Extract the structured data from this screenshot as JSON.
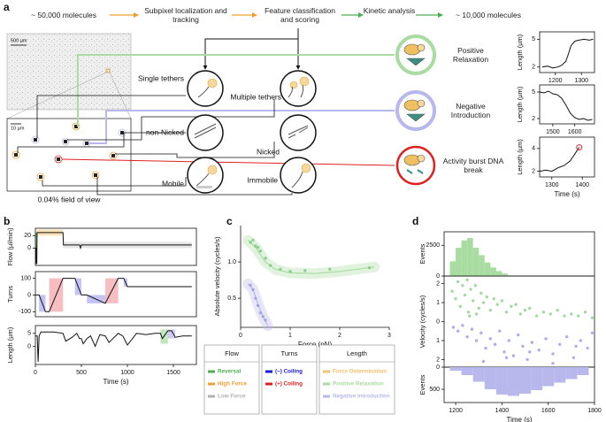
{
  "panel_labels": [
    "a",
    "b",
    "c",
    "d"
  ],
  "pipeline": [
    "~ 50,000 molecules",
    "Subpixel localization and tracking",
    "Feature classification and scoring",
    "Kinetic analysis",
    "~ 10,000 molecules"
  ],
  "image": {
    "scale_bar": "500 µm",
    "zoom_scale_bar": "10 µm",
    "caption": "0.04% field of view"
  },
  "classes": [
    "Single tethers",
    "Multiple tethers",
    "non-Nicked",
    "Nicked",
    "Mobile",
    "Immobile"
  ],
  "outcomes": [
    "Positive Relaxation",
    "Negative Introduction",
    "Activity burst DNA break"
  ],
  "legend": {
    "groups": [
      {
        "title": "Flow",
        "items": [
          {
            "name": "Reversal",
            "color": "#4caf50"
          },
          {
            "name": "High Force",
            "color": "#f0a030"
          },
          {
            "name": "Low Force",
            "color": "#b0b0b0"
          }
        ]
      },
      {
        "title": "Turns",
        "items": [
          {
            "name": "(−) Coiling",
            "color": "#1a1adc"
          },
          {
            "name": "(+) Coiling",
            "color": "#e02020"
          }
        ]
      },
      {
        "title": "Length",
        "items": [
          {
            "name": "Force Determination",
            "color": "#f5c070"
          },
          {
            "name": "Positive Relaxation",
            "color": "#a8dca0"
          },
          {
            "name": "Negative Introduction",
            "color": "#b8b8ec"
          }
        ]
      }
    ]
  },
  "chart_data": [
    {
      "type": "line",
      "frame": "box",
      "color": "#111111",
      "ylabel": "Length (µm)",
      "x": [
        1150,
        1170,
        1190,
        1210,
        1225,
        1240,
        1250,
        1260,
        1275,
        1290,
        1310,
        1330,
        1345
      ],
      "values": [
        2.0,
        2.1,
        1.9,
        2.0,
        2.2,
        2.6,
        3.4,
        4.3,
        4.8,
        4.9,
        5.0,
        4.9,
        5.0
      ],
      "xlim": [
        1140,
        1350
      ],
      "ylim": [
        1.4,
        5.8
      ],
      "xticks": [
        1200,
        1300
      ],
      "yticks": [
        2,
        5
      ]
    },
    {
      "type": "line",
      "frame": "box",
      "color": "#111111",
      "ylabel": "Length (µm)",
      "x": [
        1440,
        1460,
        1480,
        1500,
        1520,
        1540,
        1560,
        1580,
        1600,
        1620,
        1640,
        1660,
        1680
      ],
      "values": [
        5.0,
        4.9,
        5.1,
        4.8,
        4.7,
        4.3,
        3.5,
        2.6,
        2.1,
        1.9,
        2.0,
        1.8,
        1.9
      ],
      "xlim": [
        1440,
        1690
      ],
      "ylim": [
        1.4,
        5.8
      ],
      "xticks": [
        1500,
        1600
      ],
      "yticks": [
        2,
        5
      ]
    },
    {
      "type": "line",
      "frame": "box",
      "color": "#111111",
      "ylabel": "Length (µm)",
      "xlabel": "Time (s)",
      "end_marker_color": "#e02020",
      "x": [
        1260,
        1280,
        1300,
        1320,
        1340,
        1360,
        1370,
        1380,
        1390
      ],
      "values": [
        2.0,
        2.1,
        2.0,
        2.3,
        2.5,
        2.9,
        3.3,
        3.7,
        4.1
      ],
      "xlim": [
        1260,
        1440
      ],
      "ylim": [
        1.5,
        5.0
      ],
      "xticks": [
        1300,
        1400
      ],
      "yticks": [
        2,
        4
      ]
    },
    {
      "type": "line",
      "frame": "box",
      "color": "#111111",
      "ylabel": "Flow (µl/min)",
      "x": [
        0,
        8,
        10,
        15,
        18,
        300,
        305,
        480,
        490,
        500,
        510,
        1700
      ],
      "values": [
        0,
        0,
        -25,
        -25,
        25,
        25,
        5,
        5,
        0,
        5,
        5,
        5
      ],
      "xlim": [
        0,
        1750
      ],
      "ylim": [
        -28,
        32
      ],
      "yticks": [
        0,
        20
      ],
      "regions": [
        {
          "color": "#4caf50",
          "x": [
            0,
            18
          ],
          "y": [
            -25,
            25
          ]
        },
        {
          "color": "#fbd59a",
          "x": [
            18,
            300
          ],
          "y": [
            20,
            30
          ]
        },
        {
          "color": "#dcdcdc",
          "x": [
            300,
            1700
          ],
          "y": [
            0,
            10
          ]
        }
      ]
    },
    {
      "type": "line",
      "frame": "box",
      "color": "#111111",
      "ylabel": "Turns",
      "x": [
        0,
        40,
        110,
        150,
        300,
        430,
        500,
        560,
        760,
        900,
        960,
        1000,
        1700
      ],
      "values": [
        0,
        0,
        -100,
        -100,
        100,
        100,
        0,
        0,
        -50,
        100,
        100,
        50,
        50
      ],
      "xlim": [
        0,
        1750
      ],
      "ylim": [
        -130,
        140
      ],
      "yticks": [
        -100,
        0,
        100
      ],
      "regions": [
        {
          "color": "#a9a9f0",
          "x": [
            40,
            110
          ],
          "y": [
            -100,
            0
          ]
        },
        {
          "color": "#f4a3a8",
          "x": [
            150,
            300
          ],
          "y": [
            -100,
            100
          ]
        },
        {
          "color": "#a9a9f0",
          "x": [
            430,
            500
          ],
          "y": [
            0,
            100
          ]
        },
        {
          "color": "#a9a9f0",
          "x": [
            560,
            760
          ],
          "y": [
            -50,
            0
          ]
        },
        {
          "color": "#f4a3a8",
          "x": [
            760,
            900
          ],
          "y": [
            -50,
            100
          ]
        },
        {
          "color": "#a9a9f0",
          "x": [
            960,
            1000
          ],
          "y": [
            50,
            100
          ]
        }
      ]
    },
    {
      "type": "line",
      "frame": "box",
      "color": "#111111",
      "ylabel": "Length (µm)",
      "xlabel": "Time (s)",
      "x": [
        0,
        20,
        30,
        40,
        60,
        100,
        200,
        300,
        330,
        400,
        450,
        480,
        500,
        520,
        560,
        600,
        650,
        700,
        760,
        800,
        900,
        950,
        1000,
        1100,
        1200,
        1300,
        1360,
        1380,
        1440,
        1480,
        1520,
        1600,
        1700
      ],
      "values": [
        4,
        4,
        -6,
        4,
        5.5,
        5.5,
        5.5,
        5,
        2,
        3.5,
        5,
        3,
        3,
        1,
        3,
        4,
        0,
        4.5,
        4,
        1.5,
        5,
        4,
        0.5,
        5,
        4.5,
        5,
        5,
        3,
        6,
        6,
        3.5,
        4,
        4
      ],
      "xlim": [
        0,
        1750
      ],
      "ylim": [
        -7,
        8
      ],
      "xticks": [
        0,
        500,
        1000,
        1500
      ],
      "yticks": [
        0,
        5
      ],
      "regions": [
        {
          "color": "#a8dca0",
          "x": [
            1360,
            1440
          ],
          "y": [
            1,
            6.5
          ]
        },
        {
          "color": "#b8b8ec",
          "x": [
            1440,
            1520
          ],
          "y": [
            3,
            6.5
          ]
        }
      ]
    },
    {
      "type": "scatter",
      "frame": "axes",
      "xlabel": "Force (pN)",
      "ylabel": "Absolute velocity (cycles/s)",
      "xlim": [
        0,
        3
      ],
      "ylim": [
        0.1,
        1.5
      ],
      "xticks": [
        0,
        1,
        2,
        3
      ],
      "yticks": [
        0.5,
        {
          "value": 1,
          "label": "1.0"
        }
      ],
      "series": [
        {
          "style": "fit",
          "color": "#a8dca0",
          "x": [
            0.15,
            0.3,
            0.5,
            0.7,
            1,
            1.5,
            2,
            2.7
          ],
          "values": [
            1.3,
            1.2,
            1.0,
            0.9,
            0.85,
            0.84,
            0.87,
            0.93
          ]
        },
        {
          "style": "points",
          "color": "#7cc47a",
          "x": [
            0.2,
            0.25,
            0.3,
            0.35,
            0.4,
            0.5,
            0.6,
            0.8,
            1.0,
            1.3,
            1.8,
            2.6
          ],
          "values": [
            1.27,
            1.3,
            1.22,
            1.2,
            1.15,
            1.05,
            0.95,
            0.9,
            0.87,
            0.88,
            0.9,
            0.92
          ]
        },
        {
          "style": "fit",
          "color": "#b8b8ec",
          "x": [
            0.15,
            0.25,
            0.35,
            0.45,
            0.55
          ],
          "values": [
            0.7,
            0.62,
            0.42,
            0.25,
            0.12
          ]
        },
        {
          "style": "points",
          "color": "#9a9ae0",
          "x": [
            0.2,
            0.25,
            0.3,
            0.35,
            0.4,
            0.45,
            0.5
          ],
          "values": [
            0.68,
            0.62,
            0.5,
            0.4,
            0.3,
            0.25,
            0.2
          ]
        }
      ]
    },
    {
      "type": "histogram",
      "frame": "box",
      "color": "#a8dca0",
      "ylabel": "Events",
      "bins": [
        1175,
        1200,
        1225,
        1250,
        1275,
        1300,
        1325,
        1350,
        1375,
        1400,
        1425
      ],
      "values": [
        1200,
        2300,
        2900,
        3100,
        2300,
        1700,
        1100,
        700,
        400,
        200
      ],
      "xlim": [
        1150,
        1800
      ],
      "ylim": [
        0,
        3600
      ],
      "yticks": [
        0,
        2500
      ]
    },
    {
      "type": "scatter",
      "frame": "box",
      "ylabel": "Velocity (cycles/s)",
      "xlim": [
        1150,
        1800
      ],
      "ylim": [
        -2.4,
        2.4
      ],
      "yticks": [
        {
          "value": -2,
          "label": "2"
        },
        {
          "value": -1,
          "label": "1"
        },
        0,
        1,
        2
      ],
      "series": [
        {
          "style": "points",
          "color": "#8fd08a",
          "x": [
            1185,
            1200,
            1210,
            1220,
            1230,
            1240,
            1250,
            1255,
            1265,
            1275,
            1285,
            1300,
            1310,
            1320,
            1335,
            1350,
            1365,
            1380,
            1400,
            1420,
            1440,
            1460,
            1480,
            1500,
            1520,
            1550,
            1580,
            1610,
            1640,
            1670,
            1700,
            1730,
            1760,
            1790,
            1260,
            1290
          ],
          "values": [
            1.6,
            1.2,
            2.1,
            0.8,
            1.9,
            1.4,
            2.2,
            0.5,
            1.7,
            1.1,
            1.9,
            0.7,
            1.5,
            1.0,
            1.3,
            0.6,
            1.2,
            0.9,
            1.1,
            0.5,
            0.8,
            0.9,
            0.4,
            0.6,
            0.7,
            0.3,
            0.5,
            0.4,
            0.6,
            0.3,
            0.4,
            0.3,
            0.5,
            0.2,
            0.3,
            0.4
          ]
        },
        {
          "style": "points",
          "color": "#9a9ae8",
          "x": [
            1190,
            1210,
            1230,
            1250,
            1270,
            1290,
            1310,
            1330,
            1350,
            1370,
            1390,
            1410,
            1430,
            1450,
            1470,
            1490,
            1510,
            1530,
            1560,
            1590,
            1620,
            1650,
            1680,
            1710,
            1740,
            1770,
            1790,
            1320,
            1420,
            1520,
            1620,
            1720
          ],
          "values": [
            -0.3,
            -0.5,
            -0.2,
            -0.8,
            -0.4,
            -1.0,
            -0.6,
            -1.4,
            -0.9,
            -1.2,
            -0.5,
            -1.6,
            -1.0,
            -1.8,
            -0.7,
            -1.3,
            -2.0,
            -1.1,
            -1.5,
            -0.9,
            -1.7,
            -1.2,
            -0.8,
            -1.9,
            -1.0,
            -1.4,
            -0.6,
            -2.1,
            -1.9,
            -1.6,
            -2.2,
            -1.3
          ]
        }
      ]
    },
    {
      "type": "histogram",
      "frame": "box",
      "color": "#b8b8ec",
      "ylabel": "Events",
      "xlabel": "Time (s)",
      "y_inverted": true,
      "bins": [
        1175,
        1225,
        1275,
        1325,
        1375,
        1425,
        1475,
        1525,
        1575,
        1625,
        1675,
        1725,
        1775
      ],
      "values": [
        80,
        180,
        330,
        500,
        620,
        650,
        600,
        520,
        430,
        350,
        270,
        180
      ],
      "xlim": [
        1150,
        1800
      ],
      "ylim": [
        0,
        800
      ],
      "xticks": [
        1200,
        1400,
        1600,
        1800
      ],
      "yticks": [
        0,
        500
      ]
    }
  ]
}
